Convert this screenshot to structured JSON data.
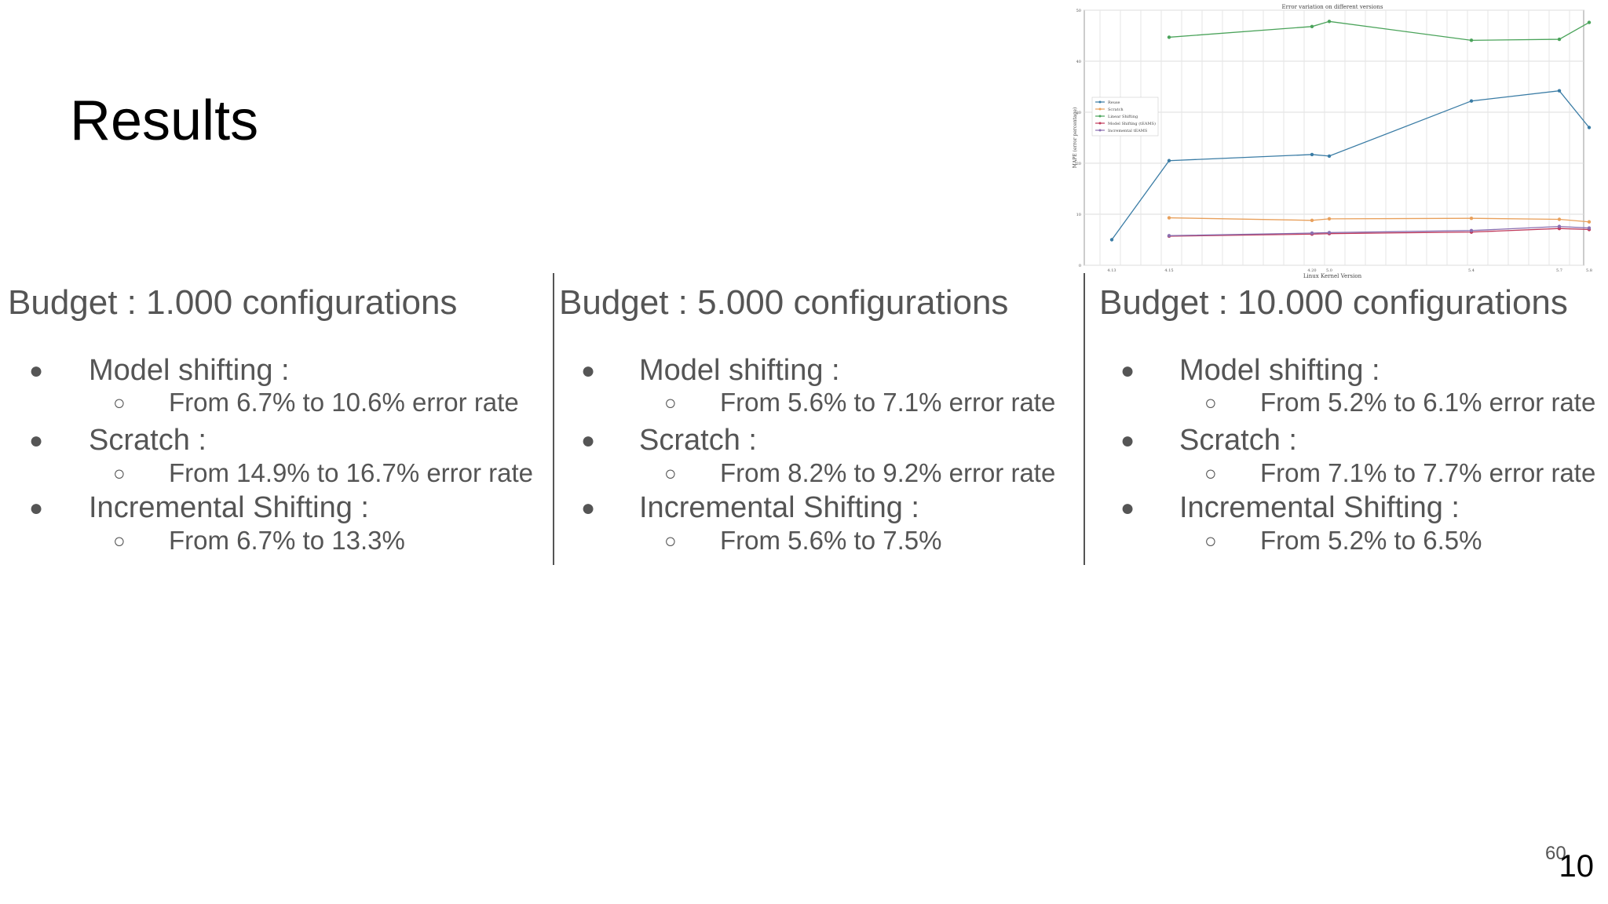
{
  "slide": {
    "title": "Results",
    "page_number": "10",
    "page_number_secondary": "60"
  },
  "columns": [
    {
      "budget": "Budget : 1.000 configurations",
      "items": [
        {
          "label": "Model shifting :",
          "detail": "From 6.7% to 10.6% error rate"
        },
        {
          "label": "Scratch :",
          "detail": "From 14.9% to 16.7% error rate"
        },
        {
          "label": "Incremental Shifting :",
          "detail": "From 6.7% to 13.3%"
        }
      ]
    },
    {
      "budget": "Budget : 5.000 configurations",
      "items": [
        {
          "label": "Model shifting :",
          "detail": "From 5.6% to 7.1% error rate"
        },
        {
          "label": "Scratch :",
          "detail": "From 8.2% to 9.2% error rate"
        },
        {
          "label": "Incremental Shifting :",
          "detail": "From 5.6% to 7.5%"
        }
      ]
    },
    {
      "budget": "Budget : 10.000 configurations",
      "items": [
        {
          "label": "Model shifting :",
          "detail": "From 5.2% to 6.1% error rate"
        },
        {
          "label": "Scratch :",
          "detail": "From 7.1% to 7.7% error rate"
        },
        {
          "label": "Incremental Shifting :",
          "detail": "From 5.2% to 6.5%"
        }
      ]
    }
  ],
  "chart_data": {
    "type": "line",
    "title": "Error variation on different versions",
    "xlabel": "Linux Kernel Version",
    "ylabel": "MAPE (error percentage)",
    "x": [
      "4.13",
      "4.15",
      "4.20",
      "5.0",
      "5.4",
      "5.7",
      "5.8"
    ],
    "ylim": [
      0,
      50
    ],
    "yticks": [
      "0",
      "10",
      "20",
      "30",
      "40",
      "50"
    ],
    "grid": true,
    "legend_position": "center-left",
    "series": [
      {
        "name": "Reuse",
        "color": "#3a7ca5",
        "values": [
          5.0,
          20.5,
          21.7,
          21.4,
          32.2,
          34.2,
          27.0
        ]
      },
      {
        "name": "Scratch",
        "color": "#e8a05c",
        "values": [
          null,
          9.3,
          8.8,
          9.1,
          9.2,
          9.0,
          8.5
        ]
      },
      {
        "name": "Linear Shifting",
        "color": "#4aa35a",
        "values": [
          null,
          44.7,
          46.8,
          47.8,
          44.1,
          44.3,
          47.6
        ]
      },
      {
        "name": "Model Shifting (tEAMS)",
        "color": "#c0395a",
        "values": [
          null,
          5.7,
          6.1,
          6.2,
          6.5,
          7.2,
          7.0
        ]
      },
      {
        "name": "Incremental tEAMS",
        "color": "#8a6fb0",
        "values": [
          null,
          5.8,
          6.3,
          6.4,
          6.8,
          7.6,
          7.3
        ]
      }
    ]
  }
}
